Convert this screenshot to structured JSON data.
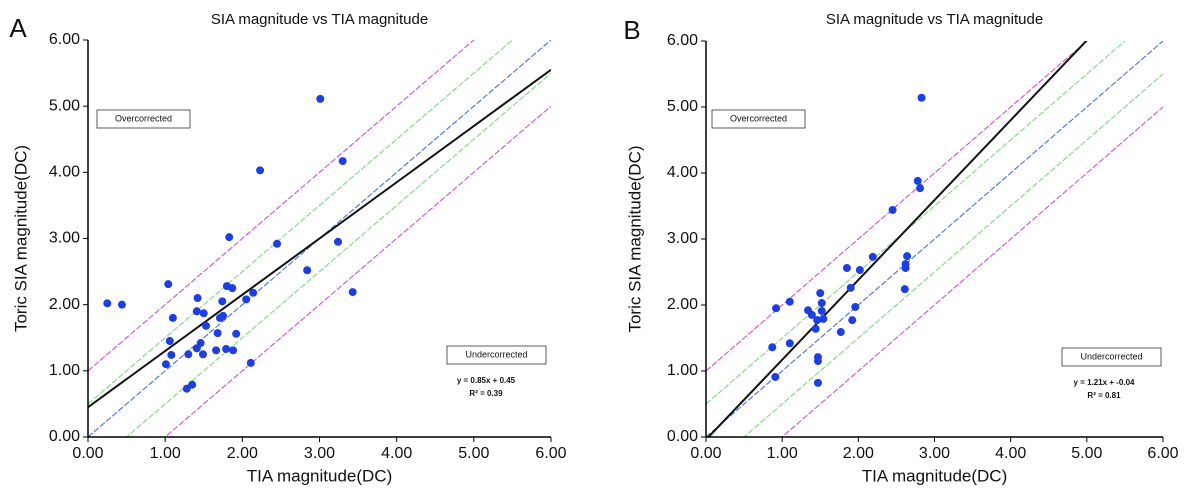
{
  "chart_data": [
    {
      "type": "scatter",
      "panel": "A",
      "title": "SIA magnitude vs TIA magnitude",
      "xlabel": "TIA magnitude(DC)",
      "ylabel": "Toric SIA magnitude(DC)",
      "x": [
        0.25,
        0.44,
        1.04,
        1.1,
        1.06,
        1.08,
        1.01,
        1.3,
        1.28,
        1.35,
        1.42,
        1.41,
        1.5,
        1.46,
        1.41,
        1.49,
        1.53,
        1.66,
        1.68,
        1.71,
        1.75,
        1.74,
        1.83,
        1.8,
        1.87,
        1.79,
        1.88,
        1.92,
        2.05,
        2.14,
        2.11,
        2.23,
        2.45,
        2.84,
        3.01,
        3.24,
        3.3,
        3.43
      ],
      "y": [
        2.02,
        2.0,
        2.31,
        1.8,
        1.45,
        1.24,
        1.1,
        1.25,
        0.73,
        0.79,
        2.1,
        1.9,
        1.87,
        1.42,
        1.34,
        1.25,
        1.68,
        1.31,
        1.57,
        1.8,
        1.83,
        2.05,
        3.02,
        2.28,
        2.25,
        1.33,
        1.31,
        1.56,
        2.08,
        2.18,
        1.12,
        4.03,
        2.92,
        2.52,
        5.11,
        2.95,
        4.17,
        2.19
      ],
      "color": "#1d3fe0",
      "xlim": [
        0,
        6
      ],
      "ylim": [
        0,
        6
      ],
      "xticks": [
        {
          "value": 0,
          "label": "0.00"
        },
        {
          "value": 1,
          "label": "1.00"
        },
        {
          "value": 2,
          "label": "2.00"
        },
        {
          "value": 3,
          "label": "3.00"
        },
        {
          "value": 4,
          "label": "4.00"
        },
        {
          "value": 5,
          "label": "5.00"
        },
        {
          "value": 6,
          "label": "6.00"
        }
      ],
      "yticks": [
        {
          "value": 0,
          "label": "0.00"
        },
        {
          "value": 1,
          "label": "1.00"
        },
        {
          "value": 2,
          "label": "2.00"
        },
        {
          "value": 3,
          "label": "3.00"
        },
        {
          "value": 4,
          "label": "4.00"
        },
        {
          "value": 5,
          "label": "5.00"
        },
        {
          "value": 6,
          "label": "6.00"
        }
      ],
      "reference_lines": [
        {
          "offset": 1,
          "color": "#d24fd2"
        },
        {
          "offset": 0.5,
          "color": "#84d484"
        },
        {
          "offset": 0,
          "color": "#4a6fdc"
        },
        {
          "offset": -0.5,
          "color": "#84d484"
        },
        {
          "offset": -1,
          "color": "#d24fd2"
        }
      ],
      "fit": {
        "slope": 0.85,
        "intercept": 0.45,
        "label": "y = 0.85x + 0.45",
        "r2_label": "R² = 0.39",
        "color": "#111111"
      },
      "over_label": "Overcorrected",
      "under_label": "Undercorrected"
    },
    {
      "type": "scatter",
      "panel": "B",
      "title": "SIA magnitude vs TIA magnitude",
      "xlabel": "TIA magnitude(DC)",
      "ylabel": "Toric SIA magnitude(DC)",
      "x": [
        0.87,
        0.92,
        0.91,
        1.1,
        1.1,
        1.34,
        1.39,
        1.46,
        1.44,
        1.47,
        1.47,
        1.47,
        1.5,
        1.52,
        1.52,
        1.54,
        1.77,
        1.85,
        1.9,
        1.92,
        1.96,
        2.02,
        2.19,
        2.45,
        2.62,
        2.62,
        2.64,
        2.61,
        2.78,
        2.81,
        2.83
      ],
      "y": [
        1.36,
        1.95,
        0.91,
        2.05,
        1.42,
        1.92,
        1.85,
        1.77,
        1.64,
        1.21,
        1.15,
        0.82,
        2.18,
        2.03,
        1.91,
        1.79,
        1.59,
        2.56,
        2.26,
        1.77,
        1.97,
        2.53,
        2.73,
        3.44,
        2.56,
        2.62,
        2.74,
        2.24,
        3.88,
        3.77,
        5.14
      ],
      "color": "#1d3fe0",
      "xlim": [
        0,
        6
      ],
      "ylim": [
        0,
        6
      ],
      "xticks": [
        {
          "value": 0,
          "label": "0.00"
        },
        {
          "value": 1,
          "label": "1.00"
        },
        {
          "value": 2,
          "label": "2.00"
        },
        {
          "value": 3,
          "label": "3.00"
        },
        {
          "value": 4,
          "label": "4.00"
        },
        {
          "value": 5,
          "label": "5.00"
        },
        {
          "value": 6,
          "label": "6.00"
        }
      ],
      "yticks": [
        {
          "value": 0,
          "label": "0.00"
        },
        {
          "value": 1,
          "label": "1.00"
        },
        {
          "value": 2,
          "label": "2.00"
        },
        {
          "value": 3,
          "label": "3.00"
        },
        {
          "value": 4,
          "label": "4.00"
        },
        {
          "value": 5,
          "label": "5.00"
        },
        {
          "value": 6,
          "label": "6.00"
        }
      ],
      "reference_lines": [
        {
          "offset": 1,
          "color": "#d24fd2"
        },
        {
          "offset": 0.5,
          "color": "#84d484"
        },
        {
          "offset": 0,
          "color": "#4a6fdc"
        },
        {
          "offset": -0.5,
          "color": "#84d484"
        },
        {
          "offset": -1,
          "color": "#d24fd2"
        }
      ],
      "fit": {
        "slope": 1.21,
        "intercept": -0.04,
        "label": "y = 1.21x + -0.04",
        "r2_label": "R² = 0.81",
        "color": "#111111"
      },
      "over_label": "Overcorrected",
      "under_label": "Undercorrected"
    }
  ]
}
